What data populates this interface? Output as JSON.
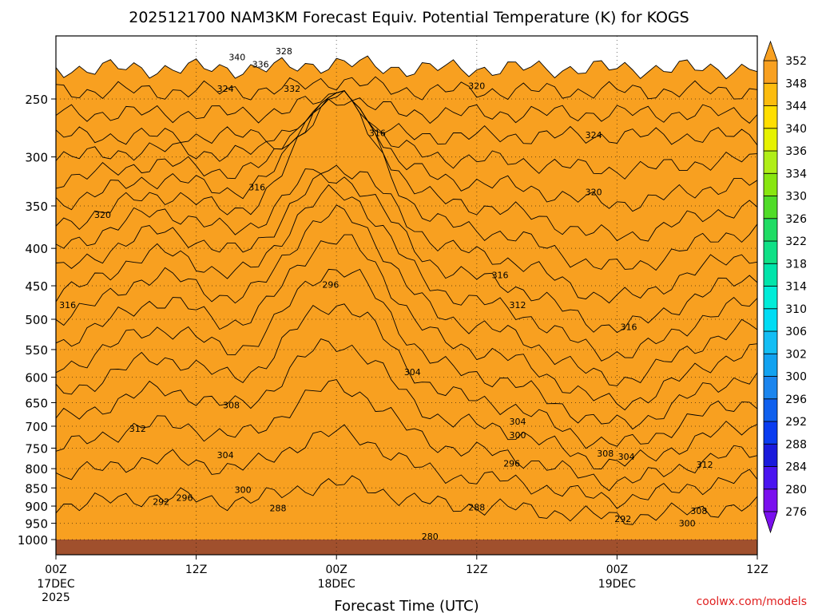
{
  "chart_data": {
    "type": "heatmap",
    "title": "2025121700 NAM3KM Forecast Equiv. Potential Temperature (K) for KOGS",
    "xlabel": "Forecast Time (UTC)",
    "ylabel": "",
    "credit": "coolwx.com/models",
    "x_ticks": [
      {
        "hour": 0,
        "label": "00Z",
        "sub": "17DEC",
        "sub2": "2025"
      },
      {
        "hour": 12,
        "label": "12Z",
        "sub": "",
        "sub2": ""
      },
      {
        "hour": 24,
        "label": "00Z",
        "sub": "18DEC",
        "sub2": ""
      },
      {
        "hour": 36,
        "label": "12Z",
        "sub": "",
        "sub2": ""
      },
      {
        "hour": 48,
        "label": "00Z",
        "sub": "19DEC",
        "sub2": ""
      },
      {
        "hour": 60,
        "label": "12Z",
        "sub": "",
        "sub2": ""
      }
    ],
    "xlim": [
      0,
      60
    ],
    "y_ticks": [
      250,
      300,
      350,
      400,
      450,
      500,
      550,
      600,
      650,
      700,
      750,
      800,
      850,
      900,
      950,
      1000
    ],
    "ylim": [
      1000,
      200
    ],
    "y_scale": "log-pressure",
    "colorbar": {
      "levels": [
        276,
        280,
        284,
        288,
        292,
        296,
        300,
        302,
        306,
        310,
        314,
        318,
        322,
        326,
        330,
        334,
        336,
        340,
        344,
        348,
        352
      ],
      "colors": [
        "#7a10ee",
        "#4a14f0",
        "#1a1adc",
        "#0a3cf0",
        "#1060ee",
        "#1b85ee",
        "#12a2f0",
        "#14bef4",
        "#00dcf4",
        "#00ecd8",
        "#00e4aa",
        "#10e086",
        "#20dc64",
        "#50dc28",
        "#88e610",
        "#b0ee18",
        "#e6f200",
        "#ffde00",
        "#fcbc0e",
        "#f8a020"
      ]
    },
    "contour_labels": [
      {
        "hour": 19.5,
        "p": 215,
        "v": "328"
      },
      {
        "hour": 15.5,
        "p": 219,
        "v": "340"
      },
      {
        "hour": 17.5,
        "p": 224,
        "v": "336"
      },
      {
        "hour": 36.0,
        "p": 240,
        "v": "320"
      },
      {
        "hour": 20.2,
        "p": 242,
        "v": "332"
      },
      {
        "hour": 14.5,
        "p": 242,
        "v": "324"
      },
      {
        "hour": 27.5,
        "p": 278,
        "v": "316"
      },
      {
        "hour": 46.0,
        "p": 280,
        "v": "324"
      },
      {
        "hour": 46.0,
        "p": 335,
        "v": "320"
      },
      {
        "hour": 17.2,
        "p": 330,
        "v": "316"
      },
      {
        "hour": 4.0,
        "p": 360,
        "v": "320"
      },
      {
        "hour": 38.0,
        "p": 435,
        "v": "316"
      },
      {
        "hour": 23.5,
        "p": 448,
        "v": "296"
      },
      {
        "hour": 39.5,
        "p": 478,
        "v": "312"
      },
      {
        "hour": 1.0,
        "p": 478,
        "v": "316"
      },
      {
        "hour": 49.0,
        "p": 512,
        "v": "316"
      },
      {
        "hour": 30.5,
        "p": 590,
        "v": "304"
      },
      {
        "hour": 15.0,
        "p": 655,
        "v": "308"
      },
      {
        "hour": 7.0,
        "p": 705,
        "v": "312"
      },
      {
        "hour": 39.5,
        "p": 690,
        "v": "304"
      },
      {
        "hour": 39.5,
        "p": 720,
        "v": "300"
      },
      {
        "hour": 14.5,
        "p": 766,
        "v": "304"
      },
      {
        "hour": 47.0,
        "p": 762,
        "v": "308"
      },
      {
        "hour": 48.8,
        "p": 770,
        "v": "304"
      },
      {
        "hour": 39.0,
        "p": 787,
        "v": "296"
      },
      {
        "hour": 55.5,
        "p": 790,
        "v": "312"
      },
      {
        "hour": 16.0,
        "p": 855,
        "v": "300"
      },
      {
        "hour": 11.0,
        "p": 877,
        "v": "296"
      },
      {
        "hour": 9.0,
        "p": 888,
        "v": "292"
      },
      {
        "hour": 19.0,
        "p": 906,
        "v": "288"
      },
      {
        "hour": 36.0,
        "p": 903,
        "v": "288"
      },
      {
        "hour": 55.0,
        "p": 914,
        "v": "308"
      },
      {
        "hour": 48.5,
        "p": 937,
        "v": "292"
      },
      {
        "hour": 54.0,
        "p": 950,
        "v": "300"
      },
      {
        "hour": 32.0,
        "p": 990,
        "v": "280"
      }
    ]
  }
}
